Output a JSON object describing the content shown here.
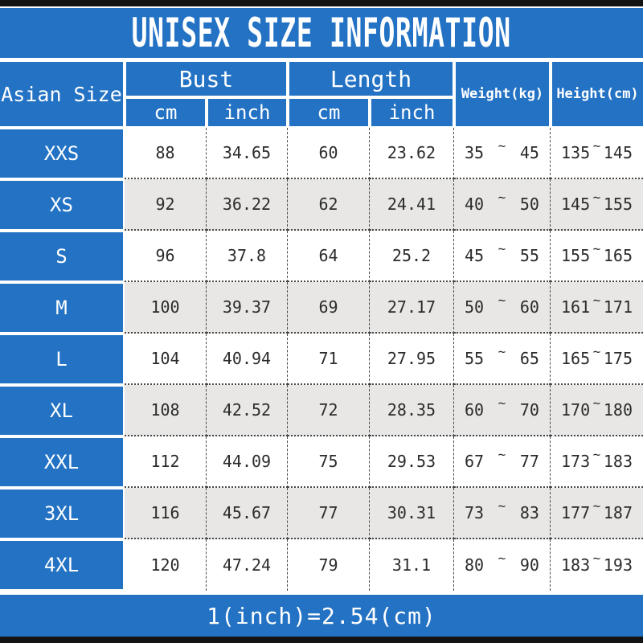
{
  "title": "UNISEX SIZE INFORMATION",
  "footer_note": "1(inch)=2.54(cm)",
  "colors": {
    "primary_blue": "#2372c4",
    "row_alt_gray": "#e8e7e5",
    "frame_black": "#131313",
    "text_dark": "#2b2b2b",
    "text_white": "#ffffff"
  },
  "table": {
    "headers": {
      "asian_size": "Asian Size",
      "bust": "Bust",
      "length": "Length",
      "weight": "Weight(kg)",
      "height": "Height(cm)",
      "cm": "cm",
      "inch": "inch"
    },
    "range_separator": "~",
    "rows": [
      {
        "size": "XXS",
        "bust_cm": "88",
        "bust_inch": "34.65",
        "length_cm": "60",
        "length_inch": "23.62",
        "weight_min": "35",
        "weight_max": "45",
        "height_min": "135",
        "height_max": "145"
      },
      {
        "size": "XS",
        "bust_cm": "92",
        "bust_inch": "36.22",
        "length_cm": "62",
        "length_inch": "24.41",
        "weight_min": "40",
        "weight_max": "50",
        "height_min": "145",
        "height_max": "155"
      },
      {
        "size": "S",
        "bust_cm": "96",
        "bust_inch": "37.8",
        "length_cm": "64",
        "length_inch": "25.2",
        "weight_min": "45",
        "weight_max": "55",
        "height_min": "155",
        "height_max": "165"
      },
      {
        "size": "M",
        "bust_cm": "100",
        "bust_inch": "39.37",
        "length_cm": "69",
        "length_inch": "27.17",
        "weight_min": "50",
        "weight_max": "60",
        "height_min": "161",
        "height_max": "171"
      },
      {
        "size": "L",
        "bust_cm": "104",
        "bust_inch": "40.94",
        "length_cm": "71",
        "length_inch": "27.95",
        "weight_min": "55",
        "weight_max": "65",
        "height_min": "165",
        "height_max": "175"
      },
      {
        "size": "XL",
        "bust_cm": "108",
        "bust_inch": "42.52",
        "length_cm": "72",
        "length_inch": "28.35",
        "weight_min": "60",
        "weight_max": "70",
        "height_min": "170",
        "height_max": "180"
      },
      {
        "size": "XXL",
        "bust_cm": "112",
        "bust_inch": "44.09",
        "length_cm": "75",
        "length_inch": "29.53",
        "weight_min": "67",
        "weight_max": "77",
        "height_min": "173",
        "height_max": "183"
      },
      {
        "size": "3XL",
        "bust_cm": "116",
        "bust_inch": "45.67",
        "length_cm": "77",
        "length_inch": "30.31",
        "weight_min": "73",
        "weight_max": "83",
        "height_min": "177",
        "height_max": "187"
      },
      {
        "size": "4XL",
        "bust_cm": "120",
        "bust_inch": "47.24",
        "length_cm": "79",
        "length_inch": "31.1",
        "weight_min": "80",
        "weight_max": "90",
        "height_min": "183",
        "height_max": "193"
      }
    ]
  }
}
